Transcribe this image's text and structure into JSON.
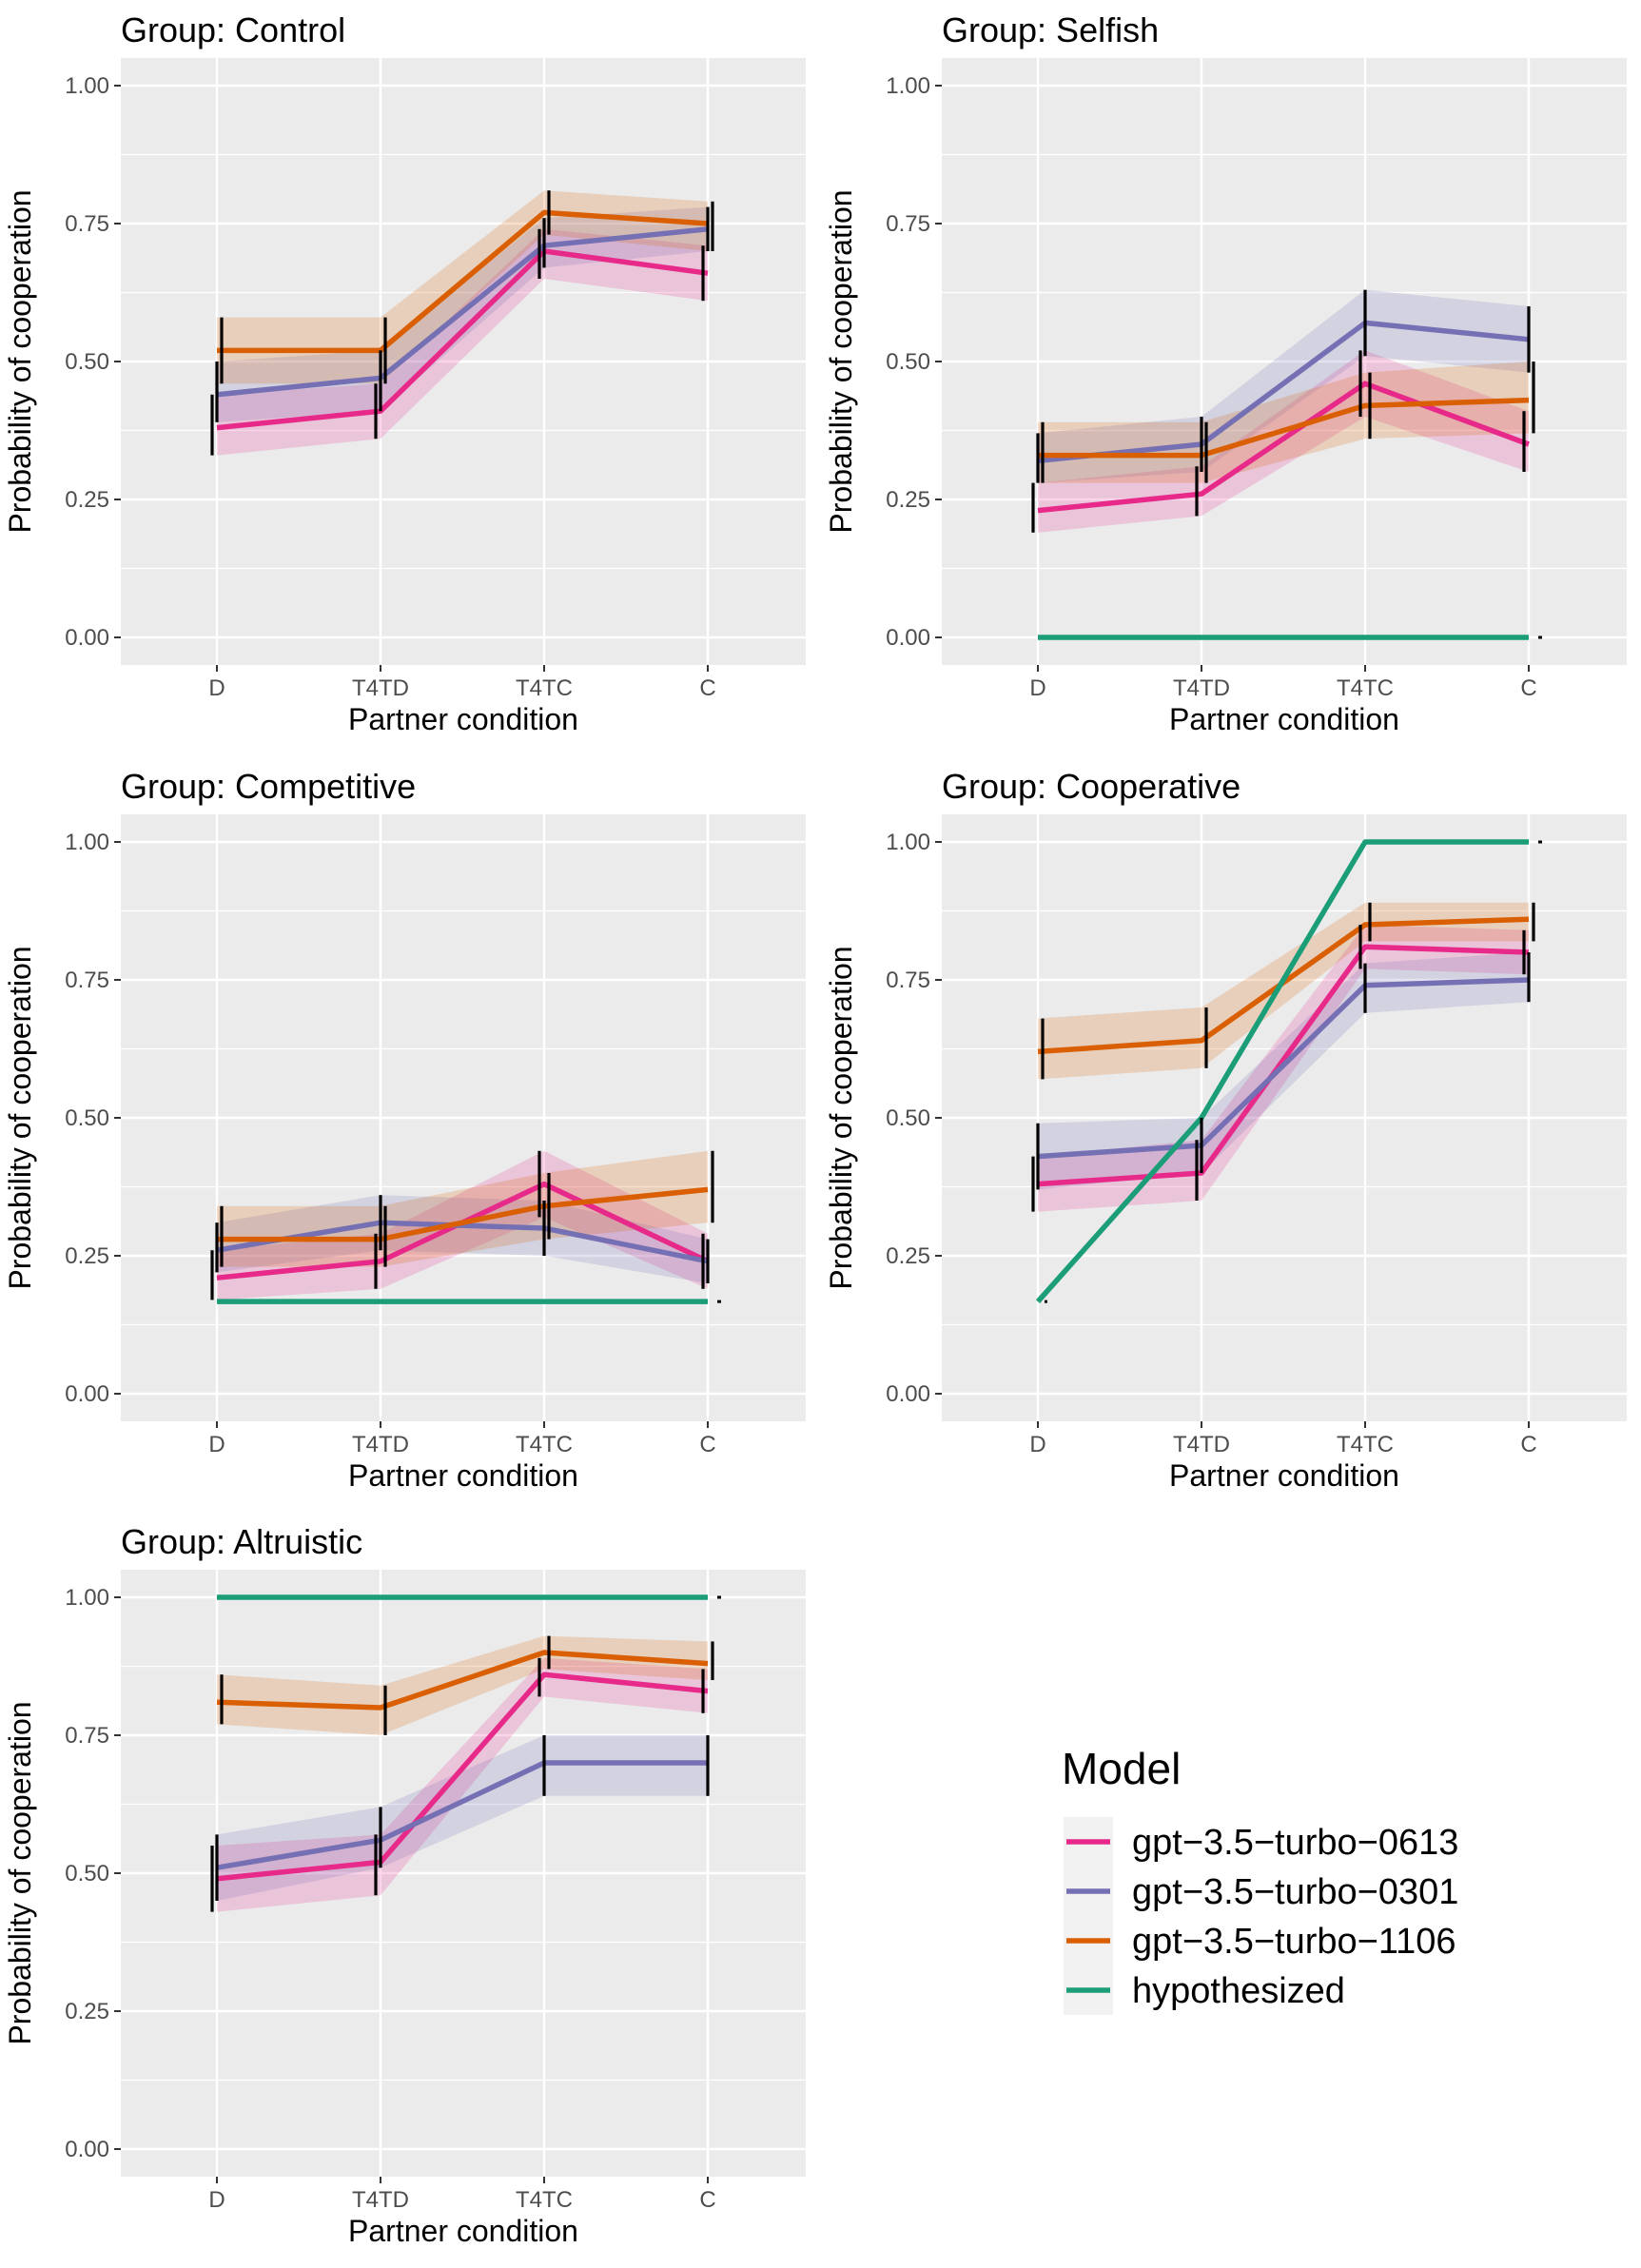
{
  "chart_data": {
    "type": "line",
    "facet_label_prefix": "Group: ",
    "x": [
      "D",
      "T4TD",
      "T4TC",
      "C"
    ],
    "xlabel": "Partner condition",
    "ylabel": "Probability of cooperation",
    "ylim": [
      -0.05,
      1.05
    ],
    "yticks": [
      "0.00",
      "0.25",
      "0.50",
      "0.75",
      "1.00"
    ],
    "grid": true,
    "legend": {
      "title": "Model",
      "placement": "bottom-right",
      "entries": [
        {
          "name": "gpt−3.5−turbo−0613",
          "color": "#e7298a"
        },
        {
          "name": "gpt−3.5−turbo−0301",
          "color": "#7570b3"
        },
        {
          "name": "gpt−3.5−turbo−1106",
          "color": "#d95f02"
        },
        {
          "name": "hypothesized",
          "color": "#1b9e77"
        }
      ]
    },
    "panels": [
      {
        "group": "Control",
        "series": [
          {
            "model": 0,
            "values": [
              0.38,
              0.41,
              0.7,
              0.66
            ],
            "lower": [
              0.33,
              0.36,
              0.65,
              0.61
            ],
            "upper": [
              0.44,
              0.46,
              0.74,
              0.71
            ]
          },
          {
            "model": 1,
            "values": [
              0.44,
              0.47,
              0.71,
              0.74
            ],
            "lower": [
              0.39,
              0.41,
              0.67,
              0.7
            ],
            "upper": [
              0.5,
              0.52,
              0.76,
              0.78
            ]
          },
          {
            "model": 2,
            "values": [
              0.52,
              0.52,
              0.77,
              0.75
            ],
            "lower": [
              0.46,
              0.46,
              0.73,
              0.7
            ],
            "upper": [
              0.58,
              0.58,
              0.81,
              0.79
            ]
          }
        ]
      },
      {
        "group": "Selfish",
        "series": [
          {
            "model": 0,
            "values": [
              0.23,
              0.26,
              0.46,
              0.35
            ],
            "lower": [
              0.19,
              0.22,
              0.4,
              0.3
            ],
            "upper": [
              0.28,
              0.31,
              0.52,
              0.41
            ]
          },
          {
            "model": 1,
            "values": [
              0.32,
              0.35,
              0.57,
              0.54
            ],
            "lower": [
              0.28,
              0.3,
              0.51,
              0.48
            ],
            "upper": [
              0.37,
              0.4,
              0.63,
              0.6
            ]
          },
          {
            "model": 2,
            "values": [
              0.33,
              0.33,
              0.42,
              0.43
            ],
            "lower": [
              0.28,
              0.28,
              0.36,
              0.37
            ],
            "upper": [
              0.39,
              0.39,
              0.48,
              0.5
            ]
          },
          {
            "model": 3,
            "values": [
              0.0,
              0.0,
              0.0,
              0.0
            ]
          }
        ]
      },
      {
        "group": "Competitive",
        "series": [
          {
            "model": 0,
            "values": [
              0.21,
              0.24,
              0.38,
              0.24
            ],
            "lower": [
              0.17,
              0.19,
              0.32,
              0.19
            ],
            "upper": [
              0.26,
              0.29,
              0.44,
              0.29
            ]
          },
          {
            "model": 1,
            "values": [
              0.26,
              0.31,
              0.3,
              0.24
            ],
            "lower": [
              0.22,
              0.26,
              0.25,
              0.2
            ],
            "upper": [
              0.31,
              0.36,
              0.35,
              0.28
            ]
          },
          {
            "model": 2,
            "values": [
              0.28,
              0.28,
              0.34,
              0.37
            ],
            "lower": [
              0.23,
              0.23,
              0.28,
              0.31
            ],
            "upper": [
              0.34,
              0.34,
              0.4,
              0.44
            ]
          },
          {
            "model": 3,
            "values": [
              0.167,
              0.167,
              0.167,
              0.167
            ]
          }
        ]
      },
      {
        "group": "Cooperative",
        "series": [
          {
            "model": 0,
            "values": [
              0.38,
              0.4,
              0.81,
              0.8
            ],
            "lower": [
              0.33,
              0.35,
              0.77,
              0.76
            ],
            "upper": [
              0.43,
              0.46,
              0.85,
              0.84
            ]
          },
          {
            "model": 1,
            "values": [
              0.43,
              0.45,
              0.74,
              0.75
            ],
            "lower": [
              0.37,
              0.4,
              0.69,
              0.71
            ],
            "upper": [
              0.49,
              0.5,
              0.78,
              0.8
            ]
          },
          {
            "model": 2,
            "values": [
              0.62,
              0.64,
              0.85,
              0.86
            ],
            "lower": [
              0.57,
              0.59,
              0.82,
              0.82
            ],
            "upper": [
              0.68,
              0.7,
              0.89,
              0.89
            ]
          },
          {
            "model": 3,
            "values": [
              0.167,
              0.5,
              1.0,
              1.0
            ]
          }
        ]
      },
      {
        "group": "Altruistic",
        "series": [
          {
            "model": 0,
            "values": [
              0.49,
              0.52,
              0.86,
              0.83
            ],
            "lower": [
              0.43,
              0.46,
              0.82,
              0.79
            ],
            "upper": [
              0.55,
              0.57,
              0.89,
              0.87
            ]
          },
          {
            "model": 1,
            "values": [
              0.51,
              0.56,
              0.7,
              0.7
            ],
            "lower": [
              0.45,
              0.51,
              0.64,
              0.64
            ],
            "upper": [
              0.57,
              0.62,
              0.75,
              0.75
            ]
          },
          {
            "model": 2,
            "values": [
              0.81,
              0.8,
              0.9,
              0.88
            ],
            "lower": [
              0.77,
              0.75,
              0.87,
              0.85
            ],
            "upper": [
              0.86,
              0.84,
              0.93,
              0.92
            ]
          },
          {
            "model": 3,
            "values": [
              1.0,
              1.0,
              1.0,
              1.0
            ]
          }
        ]
      }
    ]
  }
}
